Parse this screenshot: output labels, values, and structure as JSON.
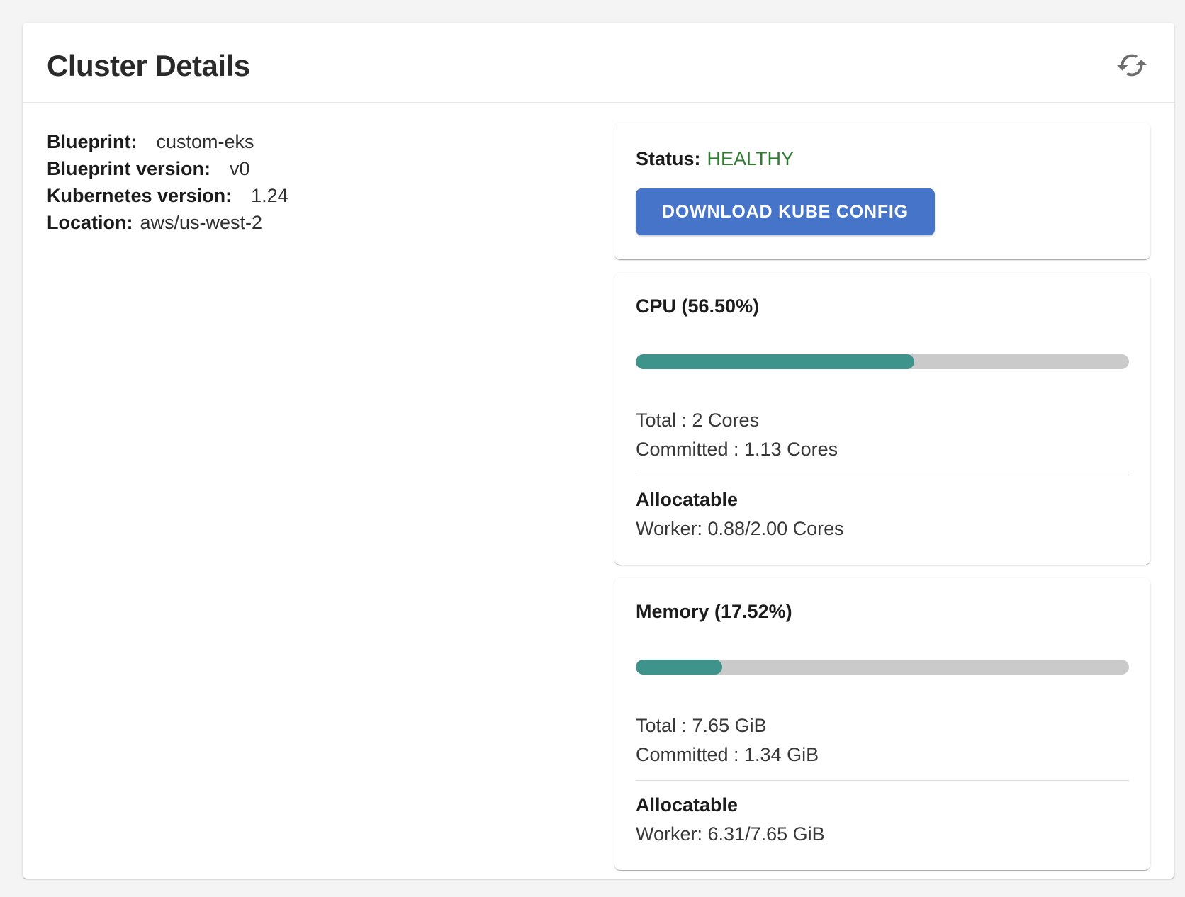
{
  "panel": {
    "title": "Cluster Details"
  },
  "details": {
    "rows": [
      {
        "label": "Blueprint:",
        "value": "custom-eks"
      },
      {
        "label": "Blueprint version:",
        "value": "v0"
      },
      {
        "label": "Kubernetes version:",
        "value": "1.24"
      },
      {
        "label": "Location:",
        "value": "aws/us-west-2"
      }
    ]
  },
  "status": {
    "label": "Status:",
    "value": "HEALTHY",
    "button_label": "DOWNLOAD KUBE CONFIG"
  },
  "metrics": [
    {
      "title": "CPU (56.50%)",
      "percent": 56.5,
      "total": "Total : 2 Cores",
      "committed": "Committed : 1.13 Cores",
      "allocatable_label": "Allocatable",
      "worker": "Worker: 0.88/2.00 Cores"
    },
    {
      "title": "Memory (17.52%)",
      "percent": 17.52,
      "total": "Total : 7.65 GiB",
      "committed": "Committed : 1.34 GiB",
      "allocatable_label": "Allocatable",
      "worker": "Worker: 6.31/7.65 GiB"
    }
  ],
  "colors": {
    "healthy_green": "#2e7d32",
    "button_blue": "#4674c8",
    "bar_fill": "#3e948b",
    "bar_track": "#cacaca"
  }
}
